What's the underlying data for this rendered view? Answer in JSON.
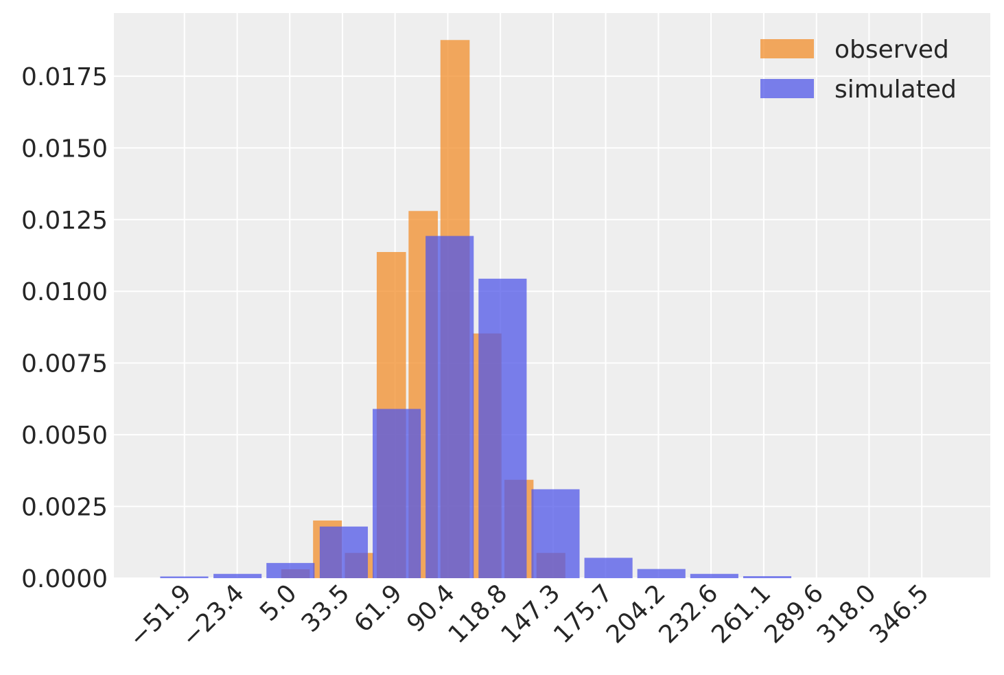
{
  "chart_data": {
    "type": "bar",
    "xlabel": "",
    "ylabel": "",
    "xlim": [
      -90.0,
      383.5
    ],
    "ylim": [
      0.0,
      0.0197
    ],
    "grid": true,
    "legend_position": "top-right",
    "x_ticks": [
      -51.9,
      -23.4,
      5.0,
      33.5,
      61.9,
      90.4,
      118.8,
      147.3,
      175.7,
      204.2,
      232.6,
      261.1,
      289.6,
      318.0,
      346.5
    ],
    "x_tick_labels": [
      "−51.9",
      "−23.4",
      "5.0",
      "33.5",
      "61.9",
      "90.4",
      "118.8",
      "147.3",
      "175.7",
      "204.2",
      "232.6",
      "261.1",
      "289.6",
      "318.0",
      "346.5"
    ],
    "y_ticks": [
      0.0,
      0.0025,
      0.005,
      0.0075,
      0.01,
      0.0125,
      0.015,
      0.0175
    ],
    "y_tick_labels": [
      "0.0000",
      "0.0025",
      "0.0050",
      "0.0075",
      "0.0100",
      "0.0125",
      "0.0150",
      "0.0175"
    ],
    "series": [
      {
        "name": "observed",
        "color": "#f28e2b",
        "bars": [
          {
            "x0": 0.4,
            "x1": 15.8,
            "y": 0.00031
          },
          {
            "x0": 17.6,
            "x1": 33.2,
            "y": 0.00201
          },
          {
            "x0": 34.8,
            "x1": 50.4,
            "y": 0.00088
          },
          {
            "x0": 52.0,
            "x1": 67.8,
            "y": 0.01137
          },
          {
            "x0": 69.2,
            "x1": 85.0,
            "y": 0.0128
          },
          {
            "x0": 86.4,
            "x1": 102.2,
            "y": 0.01876
          },
          {
            "x0": 103.8,
            "x1": 119.4,
            "y": 0.00853
          },
          {
            "x0": 121.0,
            "x1": 136.7,
            "y": 0.00343
          },
          {
            "x0": 138.3,
            "x1": 153.9,
            "y": 0.00088
          }
        ]
      },
      {
        "name": "simulated",
        "color": "#5057e8",
        "bars": [
          {
            "x0": -65.0,
            "x1": -39.0,
            "y": 6e-05
          },
          {
            "x0": -36.2,
            "x1": -10.2,
            "y": 0.00015
          },
          {
            "x0": -7.6,
            "x1": 18.4,
            "y": 0.00053
          },
          {
            "x0": 21.2,
            "x1": 47.2,
            "y": 0.0018
          },
          {
            "x0": 49.8,
            "x1": 75.8,
            "y": 0.0059
          },
          {
            "x0": 78.4,
            "x1": 104.4,
            "y": 0.01193
          },
          {
            "x0": 107.0,
            "x1": 133.0,
            "y": 0.01044
          },
          {
            "x0": 135.6,
            "x1": 161.6,
            "y": 0.0031
          },
          {
            "x0": 164.2,
            "x1": 190.2,
            "y": 0.00071
          },
          {
            "x0": 192.8,
            "x1": 218.8,
            "y": 0.00032
          },
          {
            "x0": 221.4,
            "x1": 247.4,
            "y": 0.00015
          },
          {
            "x0": 250.0,
            "x1": 276.0,
            "y": 7e-05
          }
        ]
      }
    ]
  },
  "legend": {
    "observed_label": "observed",
    "simulated_label": "simulated"
  }
}
